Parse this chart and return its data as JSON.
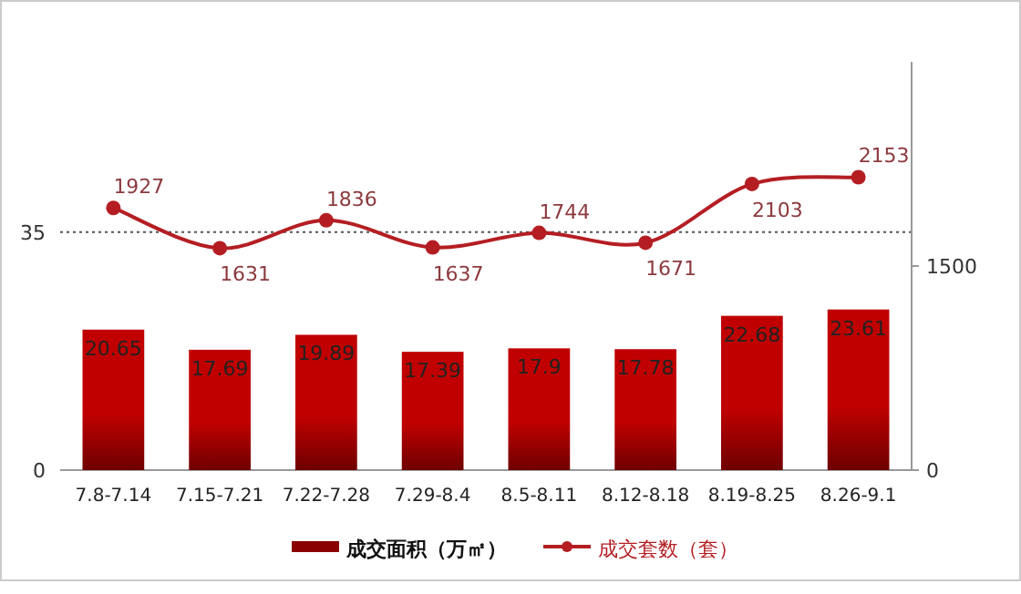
{
  "chart_data": {
    "type": "bar",
    "categories": [
      "7.8-7.14",
      "7.15-7.21",
      "7.22-7.28",
      "7.29-8.4",
      "8.5-8.11",
      "8.12-8.18",
      "8.19-8.25",
      "8.26-9.1"
    ],
    "series": [
      {
        "name": "成交面积（万㎡）",
        "color": "#c00000",
        "values": [
          20.65,
          17.69,
          19.89,
          17.39,
          17.9,
          17.78,
          22.68,
          23.61
        ]
      },
      {
        "name": "成交套数（套）",
        "type": "line",
        "axis": "y2",
        "color": "#b41e23",
        "marker": "circle",
        "values": [
          1927,
          1631,
          1836,
          1637,
          1744,
          1671,
          2103,
          2153
        ]
      }
    ],
    "ylim": [
      0,
      60
    ],
    "yticks": [
      0,
      35
    ],
    "y2lim": [
      0,
      3000
    ],
    "y2ticks": [
      0,
      1500
    ],
    "grid": "y",
    "legend": "bottom",
    "data_labels": true
  }
}
